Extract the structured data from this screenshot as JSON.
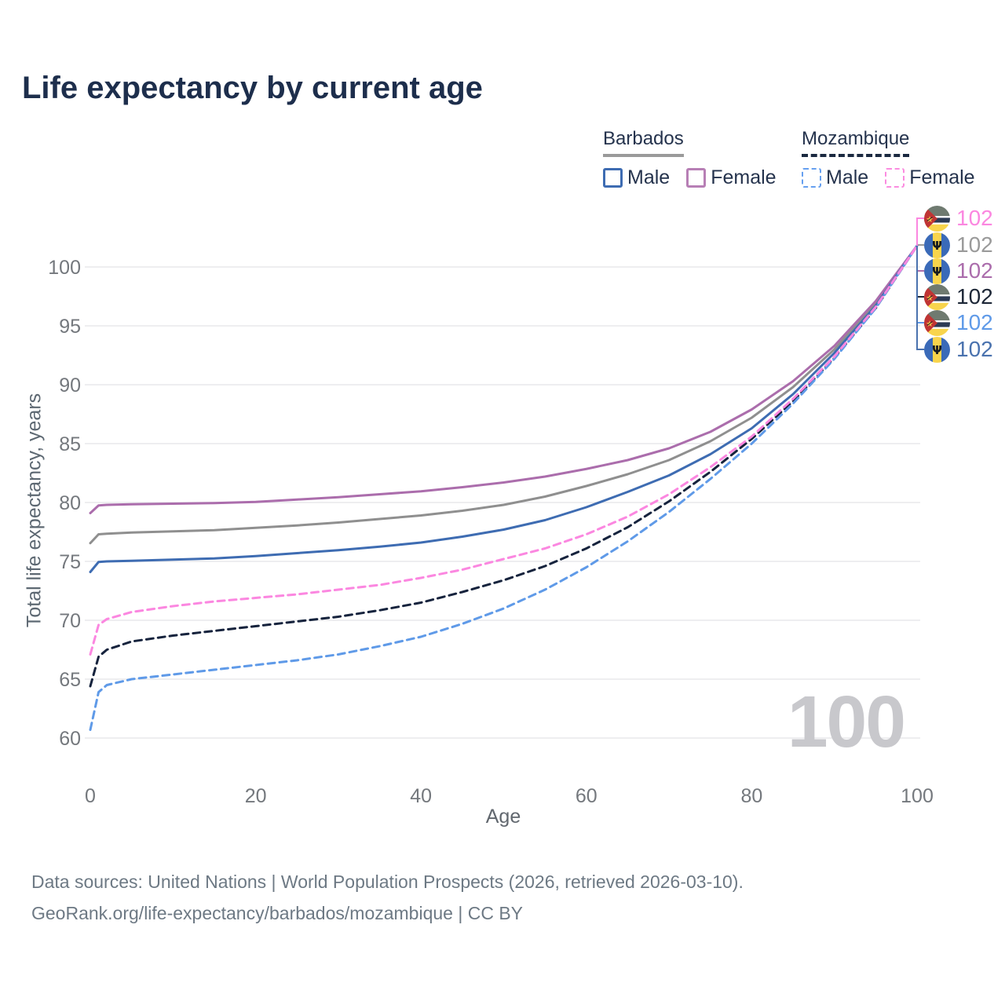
{
  "title": "Life expectancy by current age",
  "legend": {
    "barbados": {
      "name": "Barbados",
      "male": "Male",
      "female": "Female"
    },
    "mozambique": {
      "name": "Mozambique",
      "male": "Male",
      "female": "Female"
    },
    "swatches": {
      "barbados_male": "#3e6cb2",
      "barbados_female": "#b77fb5",
      "barbados_underline": "#9a9a9a",
      "mozambique_male": "#66a0f0",
      "mozambique_female": "#fb8ce0",
      "mozambique_underline": "#1b2940"
    }
  },
  "watermark_age": "100",
  "callouts": [
    {
      "flag": "mozambique",
      "series": "Mozambique Female",
      "value": "102",
      "color": "#fb87e0"
    },
    {
      "flag": "barbados",
      "series": "Barbados (both sexes)",
      "value": "102",
      "color": "#9a9a9a"
    },
    {
      "flag": "barbados",
      "series": "Barbados Female",
      "value": "102",
      "color": "#ab6dac"
    },
    {
      "flag": "mozambique",
      "series": "Mozambique (both sexes)",
      "value": "102",
      "color": "#1d2737"
    },
    {
      "flag": "mozambique",
      "series": "Mozambique Male",
      "value": "102",
      "color": "#5f9ae8"
    },
    {
      "flag": "barbados",
      "series": "Barbados Male",
      "value": "102",
      "color": "#4a72ae"
    }
  ],
  "footer": {
    "line1": "Data sources: United Nations | World Population Prospects (2026, retrieved 2026-03-10).",
    "line2": "GeoRank.org/life-expectancy/barbados/mozambique | CC BY"
  },
  "chart_data": {
    "type": "line",
    "title": "Life expectancy by current age",
    "xlabel": "Age",
    "ylabel": "Total life expectancy, years",
    "x_axis": {
      "min": 0,
      "max": 100,
      "ticks": [
        0,
        20,
        40,
        60,
        80,
        100
      ]
    },
    "y_axis": {
      "min": 60,
      "max": 100,
      "ticks": [
        60,
        65,
        70,
        75,
        80,
        85,
        90,
        95,
        100
      ]
    },
    "grid": "horizontal-only",
    "legend_position": "top-right",
    "ages": [
      0,
      1,
      2,
      5,
      10,
      15,
      20,
      25,
      30,
      35,
      40,
      45,
      50,
      55,
      60,
      65,
      70,
      75,
      80,
      85,
      90,
      95,
      100
    ],
    "series": [
      {
        "name": "Barbados Female",
        "country": "Barbados",
        "sex": "female",
        "color": "#ab6dac",
        "dashed": false,
        "values": [
          79.1,
          79.75,
          79.8,
          79.85,
          79.9,
          79.95,
          80.05,
          80.25,
          80.45,
          80.7,
          80.95,
          81.3,
          81.7,
          82.2,
          82.85,
          83.6,
          84.6,
          86.0,
          87.9,
          90.3,
          93.3,
          97.1,
          101.8
        ]
      },
      {
        "name": "Barbados (both sexes)",
        "country": "Barbados",
        "sex": "both",
        "color": "#8f8f8f",
        "dashed": false,
        "values": [
          76.55,
          77.3,
          77.35,
          77.45,
          77.55,
          77.65,
          77.85,
          78.05,
          78.3,
          78.6,
          78.9,
          79.3,
          79.8,
          80.5,
          81.4,
          82.4,
          83.6,
          85.2,
          87.2,
          89.8,
          93.0,
          96.9,
          101.8
        ]
      },
      {
        "name": "Barbados Male",
        "country": "Barbados",
        "sex": "male",
        "color": "#3e6cb2",
        "dashed": false,
        "values": [
          74.1,
          74.95,
          75.0,
          75.05,
          75.15,
          75.25,
          75.45,
          75.7,
          75.95,
          76.25,
          76.6,
          77.1,
          77.7,
          78.5,
          79.6,
          80.9,
          82.3,
          84.1,
          86.3,
          89.2,
          92.7,
          96.7,
          101.8
        ]
      },
      {
        "name": "Mozambique Female",
        "country": "Mozambique",
        "sex": "female",
        "color": "#fb87e0",
        "dashed": true,
        "values": [
          67.1,
          69.6,
          70.1,
          70.7,
          71.2,
          71.6,
          71.9,
          72.2,
          72.6,
          73.0,
          73.6,
          74.3,
          75.2,
          76.1,
          77.3,
          78.8,
          80.7,
          83.0,
          85.6,
          88.8,
          92.4,
          96.6,
          101.8
        ]
      },
      {
        "name": "Mozambique (both sexes)",
        "country": "Mozambique",
        "sex": "both",
        "color": "#16233d",
        "dashed": true,
        "values": [
          64.4,
          66.9,
          67.5,
          68.2,
          68.7,
          69.1,
          69.5,
          69.9,
          70.3,
          70.85,
          71.5,
          72.4,
          73.4,
          74.6,
          76.1,
          77.9,
          80.1,
          82.6,
          85.4,
          88.6,
          92.3,
          96.5,
          101.8
        ]
      },
      {
        "name": "Mozambique Male",
        "country": "Mozambique",
        "sex": "male",
        "color": "#5f9ae8",
        "dashed": true,
        "values": [
          60.7,
          63.9,
          64.5,
          65.0,
          65.4,
          65.8,
          66.2,
          66.6,
          67.1,
          67.8,
          68.6,
          69.7,
          71.0,
          72.6,
          74.5,
          76.7,
          79.2,
          82.0,
          85.0,
          88.4,
          92.2,
          96.5,
          101.8
        ]
      }
    ],
    "end_labels": {
      "age": 100,
      "rounded_value": 102
    }
  }
}
